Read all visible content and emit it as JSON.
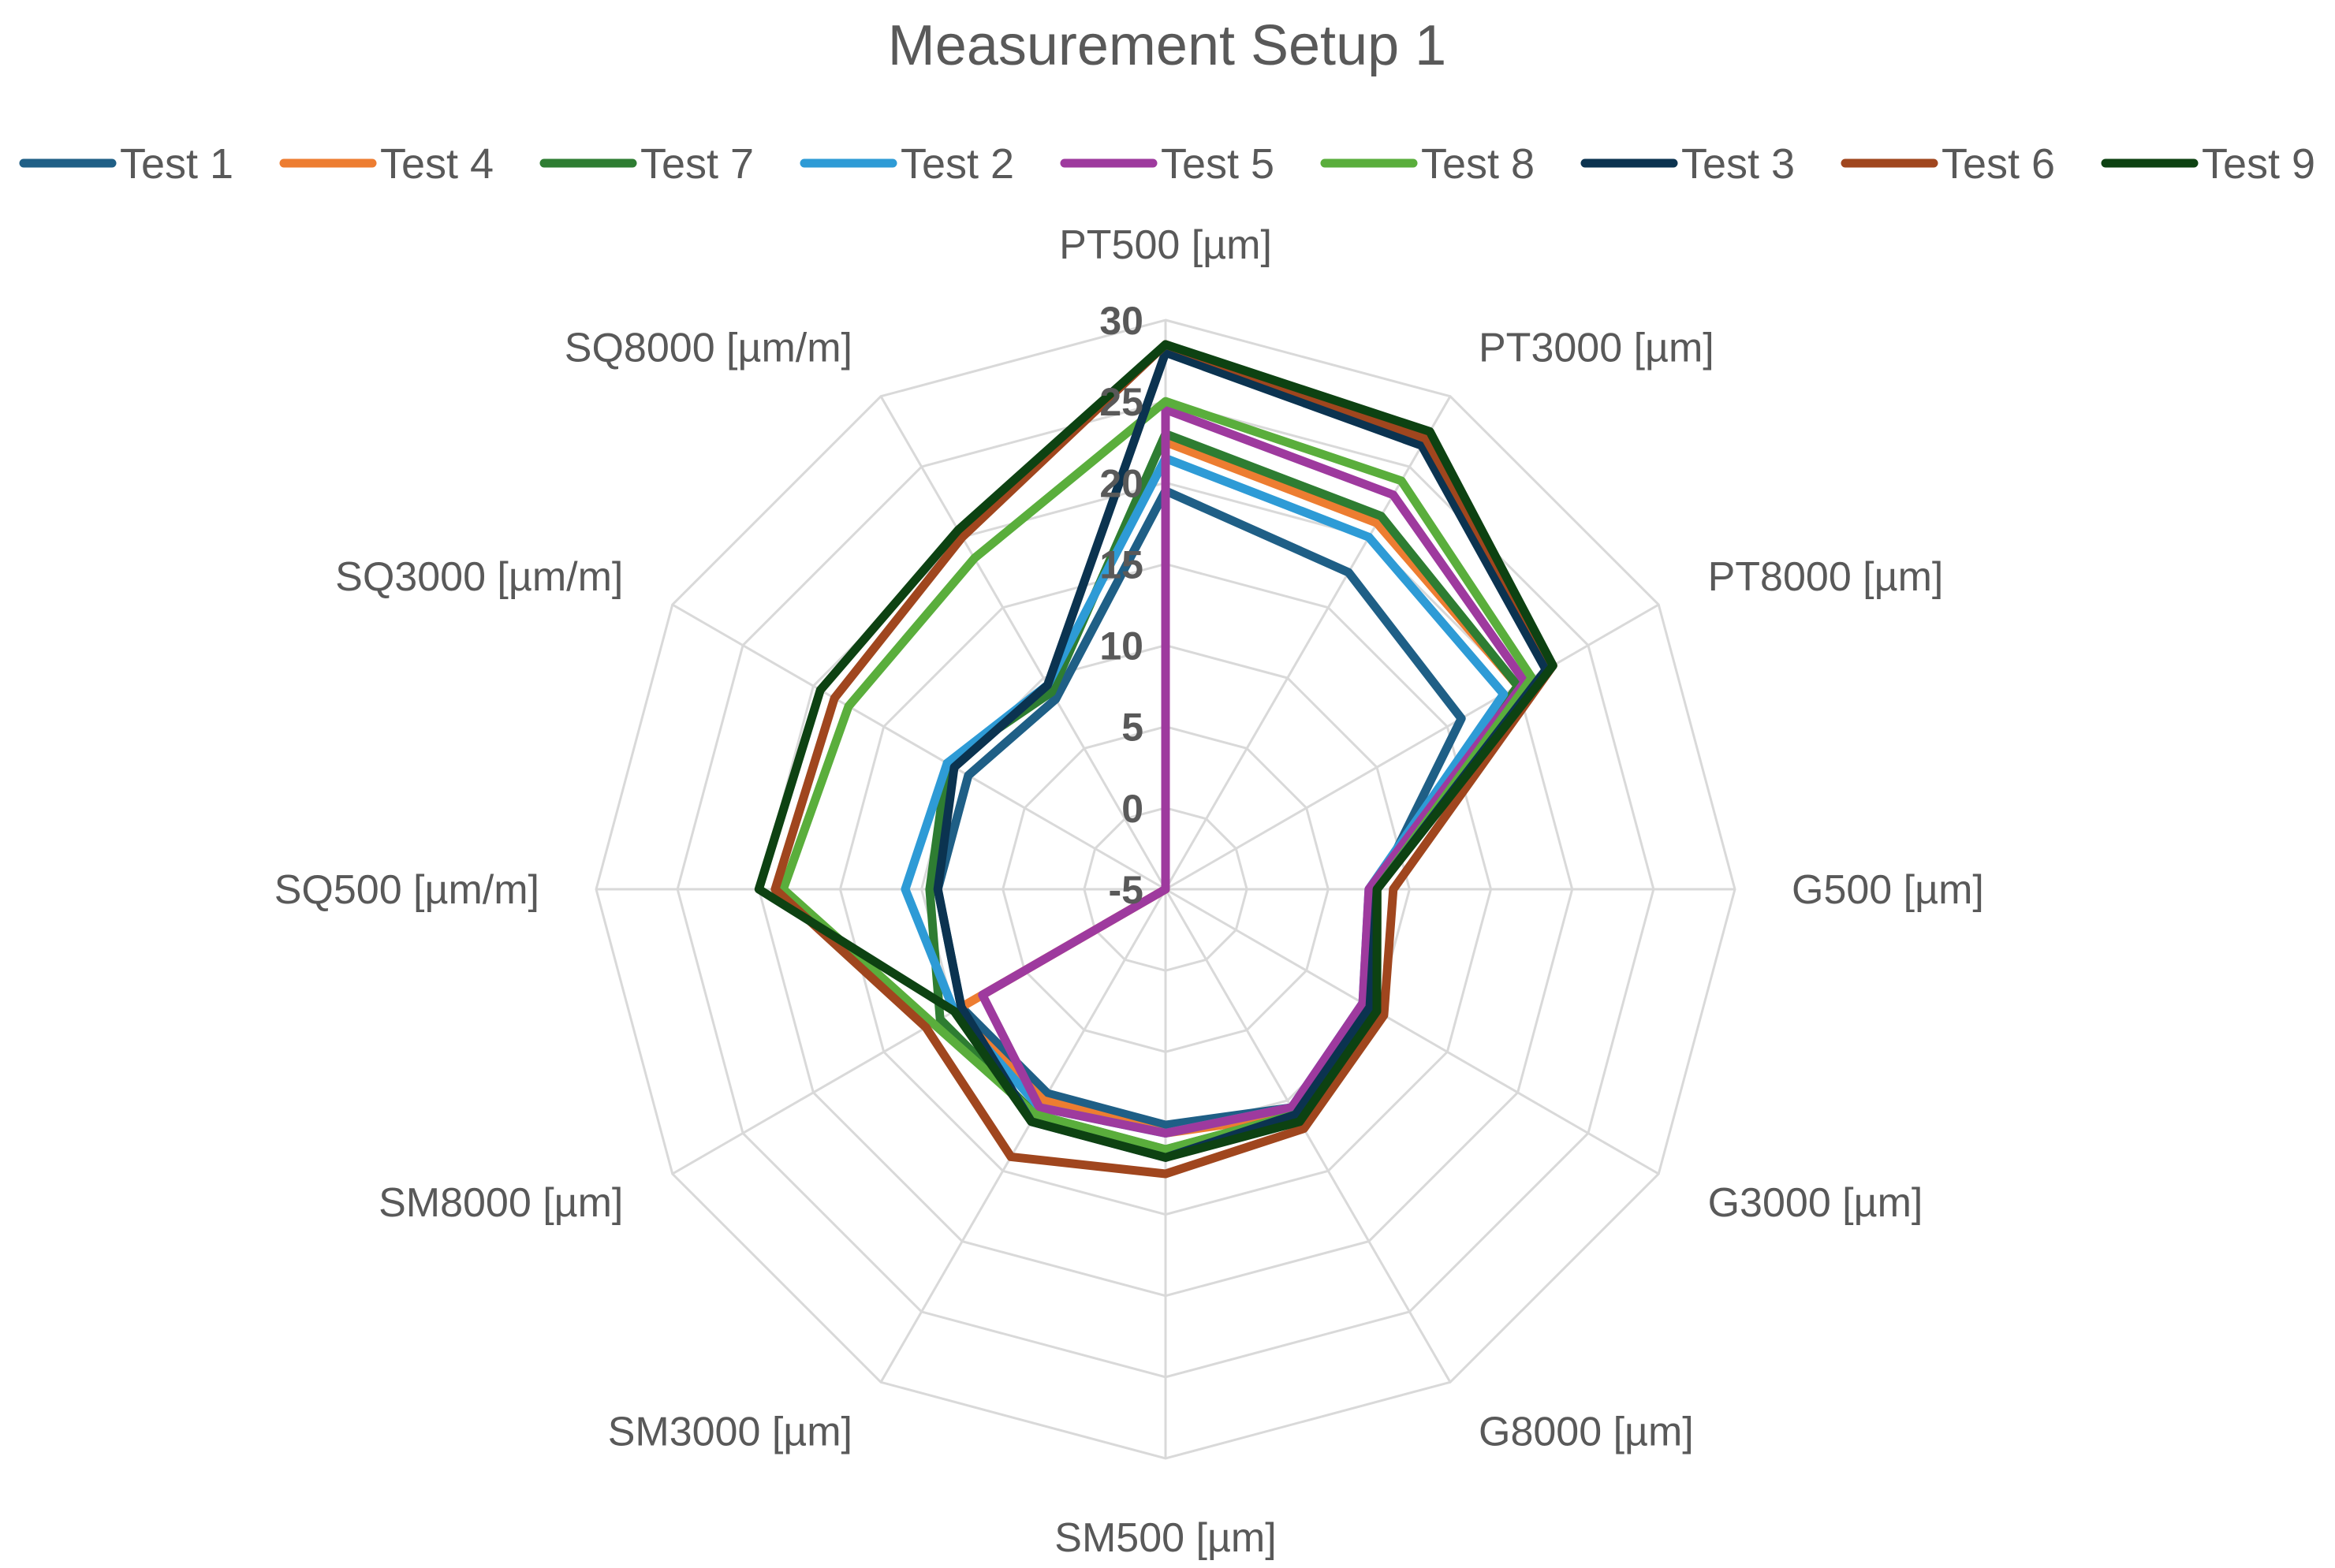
{
  "chart_data": {
    "type": "radar",
    "title": "Measurement Setup 1",
    "legend_position": "top",
    "axes": [
      "PT500 [µm]",
      "PT3000 [µm]",
      "PT8000 [µm]",
      "G500 [µm]",
      "G3000 [µm]",
      "G8000 [µm]",
      "SM500 [µm]",
      "SM3000 [µm]",
      "SM8000 [µm]",
      "SQ500 [µm/m]",
      "SQ3000 [µm/m]",
      "SQ8000 [µm/m]"
    ],
    "range": [
      -5,
      30
    ],
    "ticks": [
      -5,
      0,
      5,
      10,
      15,
      20,
      25,
      30
    ],
    "tick_labels": [
      "-5",
      "0",
      "5",
      "10",
      "15",
      "20",
      "25",
      "30"
    ],
    "grid": true,
    "series": [
      {
        "name": "Test 1",
        "color": "#1F5F86",
        "values": [
          19.5,
          17.5,
          16.0,
          8.0,
          10.0,
          10.5,
          9.5,
          9.5,
          9.5,
          9.0,
          9.0,
          8.5
        ]
      },
      {
        "name": "Test 4",
        "color": "#ED7D31",
        "values": [
          22.5,
          21.0,
          20.0,
          8.0,
          10.0,
          11.0,
          10.0,
          10.0,
          10.0,
          -5.0,
          -5.0,
          -5.0
        ]
      },
      {
        "name": "Test 7",
        "color": "#2E7D32",
        "values": [
          23.0,
          21.5,
          20.0,
          8.0,
          10.0,
          11.0,
          11.0,
          11.0,
          11.0,
          9.5,
          10.5,
          9.0
        ]
      },
      {
        "name": "Test 2",
        "color": "#2E9BD6",
        "values": [
          21.5,
          20.0,
          19.0,
          7.5,
          9.0,
          10.5,
          10.0,
          10.5,
          10.0,
          11.0,
          10.5,
          9.5
        ]
      },
      {
        "name": "Test 5",
        "color": "#9E3A9E",
        "values": [
          24.5,
          23.0,
          20.5,
          7.5,
          9.0,
          10.5,
          10.0,
          10.5,
          8.0,
          -5.0,
          -5.0,
          -5.0
        ]
      },
      {
        "name": "Test 8",
        "color": "#5AAE3C",
        "values": [
          25.0,
          24.0,
          21.0,
          8.0,
          10.0,
          11.0,
          11.0,
          11.0,
          11.5,
          18.5,
          17.5,
          18.5
        ]
      },
      {
        "name": "Test 3",
        "color": "#0B3350",
        "values": [
          28.0,
          26.5,
          22.0,
          8.0,
          9.5,
          11.0,
          11.5,
          11.5,
          9.5,
          9.0,
          10.0,
          9.5
        ]
      },
      {
        "name": "Test 6",
        "color": "#A0461E",
        "values": [
          28.5,
          27.0,
          22.5,
          9.0,
          10.5,
          12.0,
          12.5,
          14.0,
          12.0,
          19.0,
          18.5,
          20.0
        ]
      },
      {
        "name": "Test 9",
        "color": "#0D4212",
        "values": [
          28.5,
          27.5,
          22.5,
          8.0,
          10.0,
          11.5,
          11.5,
          11.5,
          10.0,
          20.0,
          19.5,
          20.5
        ]
      }
    ]
  }
}
